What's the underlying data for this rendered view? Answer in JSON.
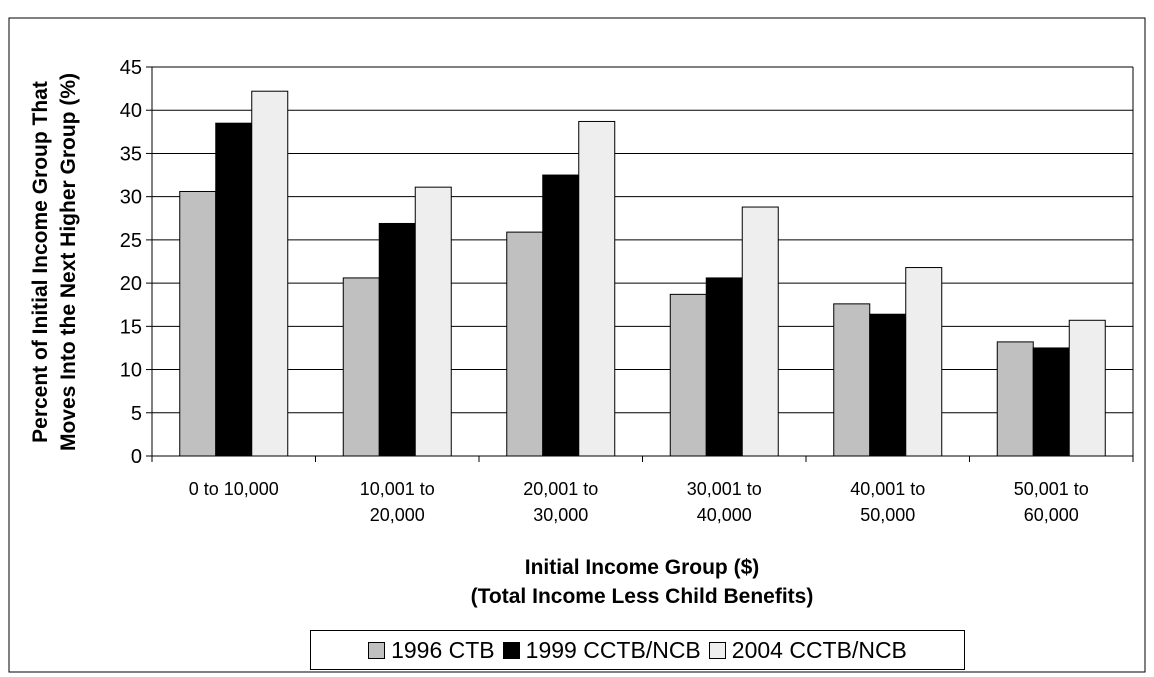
{
  "chart_data": {
    "type": "bar",
    "y_label": [
      "Percent of Initial Income Group That",
      "Moves Into the Next Higher Group (%)"
    ],
    "x_label": [
      "Initial Income Group ($)",
      "(Total Income Less Child Benefits)"
    ],
    "categories": [
      "0 to 10,000",
      "10,001 to 20,000",
      "20,001 to 30,000",
      "30,001 to 40,000",
      "40,001 to 50,000",
      "50,001 to 60,000"
    ],
    "series": [
      {
        "name": "1996 CTB",
        "color": "#c0c0c0",
        "values": [
          30.6,
          20.6,
          25.9,
          18.7,
          17.6,
          13.2
        ]
      },
      {
        "name": "1999 CCTB/NCB",
        "color": "#000000",
        "values": [
          38.5,
          26.9,
          32.5,
          20.6,
          16.4,
          12.5
        ]
      },
      {
        "name": "2004 CCTB/NCB",
        "color": "#eeeeee",
        "values": [
          42.2,
          31.1,
          38.7,
          28.8,
          21.8,
          15.7
        ]
      }
    ],
    "ylim": [
      0,
      45
    ],
    "yticks": [
      0,
      5,
      10,
      15,
      20,
      25,
      30,
      35,
      40,
      45
    ],
    "grid": true,
    "legend": "bottom"
  }
}
